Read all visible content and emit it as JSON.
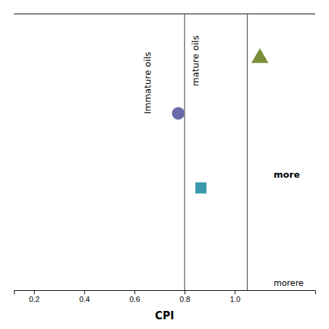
{
  "chart_data": {
    "type": "scatter",
    "xlabel": "CPI",
    "xlim": [
      0.12,
      1.32
    ],
    "ylim": [
      0.0,
      1.0
    ],
    "xticks": [
      0.2,
      0.4,
      0.6,
      0.8,
      {
        "value": 1.0,
        "label": "1.0"
      }
    ],
    "tick_labels": "x",
    "grid": false,
    "vlines": [
      0.8,
      1.05
    ],
    "series": [
      {
        "x": [
          0.775
        ],
        "values": [
          0.64
        ],
        "color": "#6b6bab",
        "marker": "circle"
      },
      {
        "x": [
          0.865
        ],
        "values": [
          0.37
        ],
        "color": "#3a9aab",
        "marker": "square"
      },
      {
        "x": [
          1.1
        ],
        "values": [
          0.84
        ],
        "color": "#7a8f3a",
        "marker": "triangle"
      }
    ],
    "annotations": [
      {
        "text": "Immature oils",
        "x": 0.655,
        "y": 0.75
      },
      {
        "text": "mature oils",
        "x": 0.845,
        "y": 0.83
      },
      {
        "text": "more",
        "x": 1.155,
        "y": 0.415
      },
      {
        "text": "morere",
        "x": 1.155,
        "y": 0.025
      }
    ]
  }
}
